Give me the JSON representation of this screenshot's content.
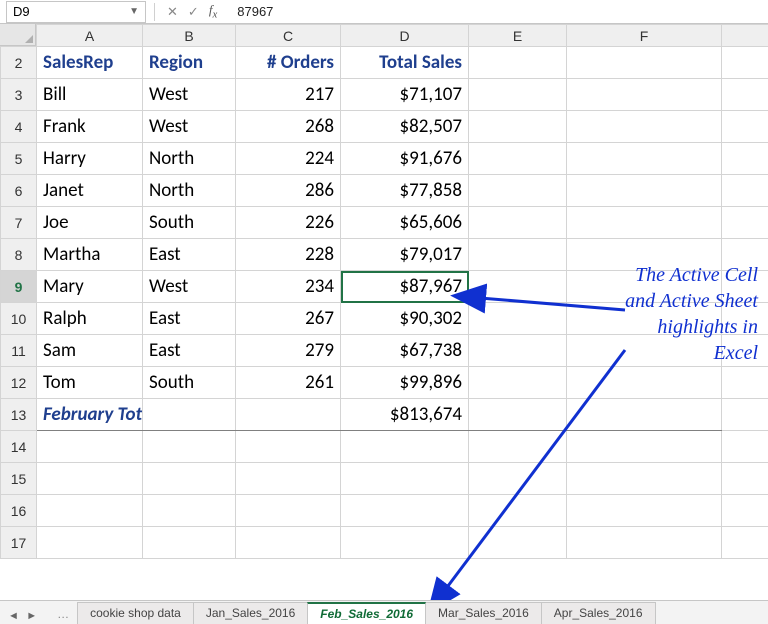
{
  "formula_bar": {
    "name_box": "D9",
    "value": "87967"
  },
  "columns": [
    "A",
    "B",
    "C",
    "D",
    "E",
    "F"
  ],
  "active_col": "D",
  "active_row": 9,
  "row_start": 2,
  "row_end": 17,
  "header_row": {
    "A": "SalesRep",
    "B": "Region",
    "C": "# Orders",
    "D": "Total Sales"
  },
  "data_rows": [
    {
      "r": 3,
      "rep": "Bill",
      "region": "West",
      "orders": "217",
      "sales": "$71,107"
    },
    {
      "r": 4,
      "rep": "Frank",
      "region": "West",
      "orders": "268",
      "sales": "$82,507"
    },
    {
      "r": 5,
      "rep": "Harry",
      "region": "North",
      "orders": "224",
      "sales": "$91,676"
    },
    {
      "r": 6,
      "rep": "Janet",
      "region": "North",
      "orders": "286",
      "sales": "$77,858"
    },
    {
      "r": 7,
      "rep": "Joe",
      "region": "South",
      "orders": "226",
      "sales": "$65,606"
    },
    {
      "r": 8,
      "rep": "Martha",
      "region": "East",
      "orders": "228",
      "sales": "$79,017"
    },
    {
      "r": 9,
      "rep": "Mary",
      "region": "West",
      "orders": "234",
      "sales": "$87,967"
    },
    {
      "r": 10,
      "rep": "Ralph",
      "region": "East",
      "orders": "267",
      "sales": "$90,302"
    },
    {
      "r": 11,
      "rep": "Sam",
      "region": "East",
      "orders": "279",
      "sales": "$67,738"
    },
    {
      "r": 12,
      "rep": "Tom",
      "region": "South",
      "orders": "261",
      "sales": "$99,896"
    }
  ],
  "total_row": {
    "r": 13,
    "label": "February Total",
    "sales": "$813,674"
  },
  "annotation": {
    "l1": "The ",
    "l1e": "Active Cell",
    "l2": " and ",
    "l2e": "Active Sheet",
    "l3": " highlights in Excel"
  },
  "tabs": {
    "items": [
      {
        "label": "cookie shop data",
        "active": false
      },
      {
        "label": "Jan_Sales_2016",
        "active": false
      },
      {
        "label": "Feb_Sales_2016",
        "active": true
      },
      {
        "label": "Mar_Sales_2016",
        "active": false
      },
      {
        "label": "Apr_Sales_2016",
        "active": false
      }
    ]
  },
  "colors": {
    "excel_green": "#217346",
    "header_text": "#1f3f8e",
    "arrow_blue": "#1030d0"
  }
}
